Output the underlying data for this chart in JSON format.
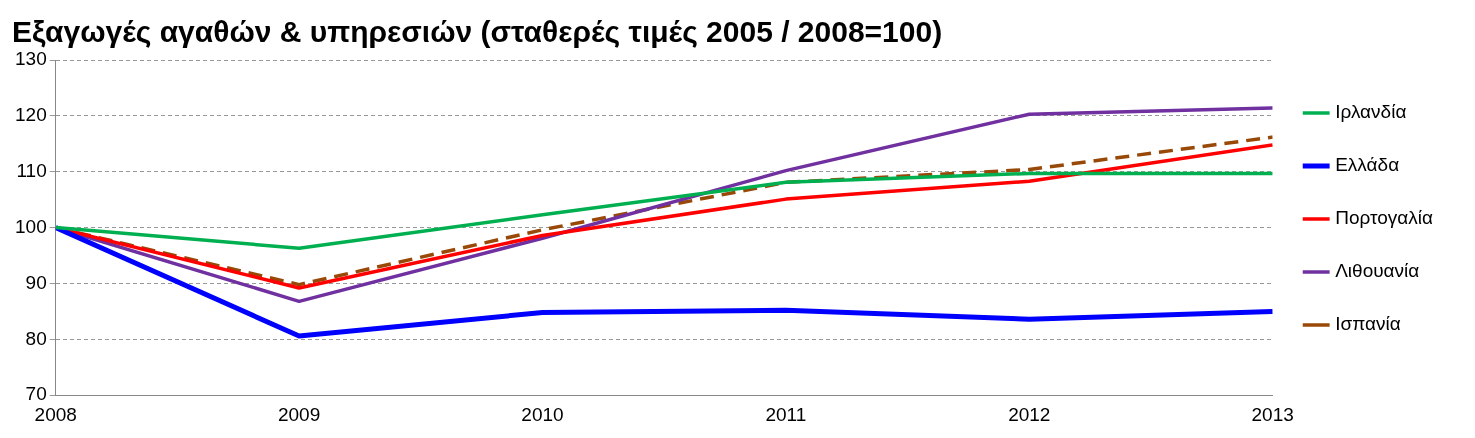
{
  "chart_data": {
    "type": "line",
    "title": "Εξαγωγές αγαθών & υπηρεσιών (σταθερές τιμές 2005 / 2008=100)",
    "x": [
      2008,
      2009,
      2010,
      2011,
      2012,
      2013
    ],
    "xlim": [
      2008,
      2013
    ],
    "xticks": [
      2008,
      2009,
      2010,
      2011,
      2012,
      2013
    ],
    "ylim": [
      70,
      130
    ],
    "yticks": [
      70,
      80,
      90,
      100,
      110,
      120,
      130
    ],
    "grid": "y",
    "legend": "right",
    "marker": "none",
    "series": [
      {
        "name": "Ιρλανδία",
        "color": "#00b050",
        "values": [
          100,
          96.3,
          102.3,
          108.1,
          109.7,
          109.7
        ]
      },
      {
        "name": "Ελλάδα",
        "color": "#0000ff",
        "values": [
          100,
          80.6,
          84.8,
          85.2,
          83.6,
          85.0
        ]
      },
      {
        "name": "Πορτογαλία",
        "color": "#ff0000",
        "values": [
          100,
          89.2,
          98.6,
          105.1,
          108.3,
          114.8
        ]
      },
      {
        "name": "Λιθουανία",
        "color": "#7030a0",
        "values": [
          100,
          86.8,
          98.1,
          110.2,
          120.3,
          121.4
        ]
      },
      {
        "name": "Ισπανία",
        "color": "#984807",
        "values": [
          100,
          89.8,
          99.6,
          108.1,
          110.4,
          116.2
        ],
        "line_style": "dashed"
      }
    ]
  }
}
